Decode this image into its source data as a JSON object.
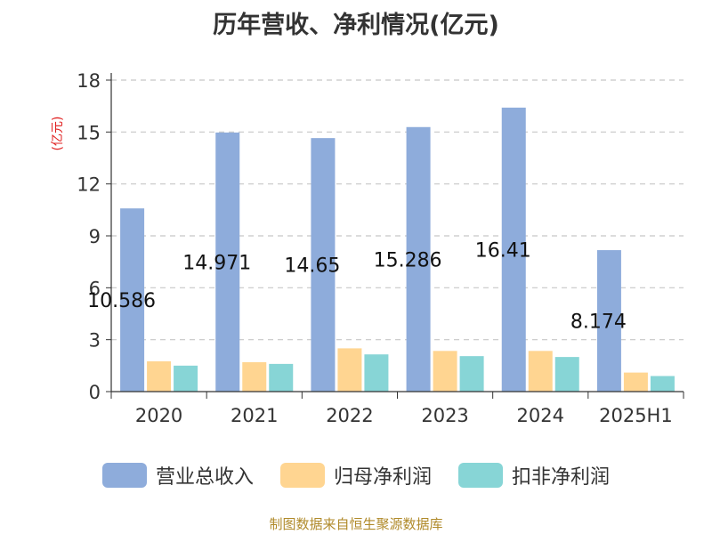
{
  "chart_data": {
    "type": "bar",
    "title": "历年营收、净利情况(亿元)",
    "ylabel": "(亿元)",
    "categories": [
      "2020",
      "2021",
      "2022",
      "2023",
      "2024",
      "2025H1"
    ],
    "ylim": [
      0,
      18
    ],
    "yticks": [
      0,
      3,
      6,
      9,
      12,
      15,
      18
    ],
    "grid": true,
    "legend_position": "bottom",
    "series": [
      {
        "name": "营业总收入",
        "color": "#8eacdb",
        "values": [
          10.586,
          14.971,
          14.65,
          15.286,
          16.41,
          8.174
        ],
        "value_labels": [
          "10.586",
          "14.971",
          "14.65",
          "15.286",
          "16.41",
          "8.174"
        ]
      },
      {
        "name": "归母净利润",
        "color": "#ffd591",
        "values": [
          1.75,
          1.7,
          2.5,
          2.35,
          2.35,
          1.1
        ]
      },
      {
        "name": "扣非净利润",
        "color": "#87d5d6",
        "values": [
          1.5,
          1.6,
          2.15,
          2.05,
          2.0,
          0.9
        ]
      }
    ]
  },
  "source_text": "制图数据来自恒生聚源数据库"
}
